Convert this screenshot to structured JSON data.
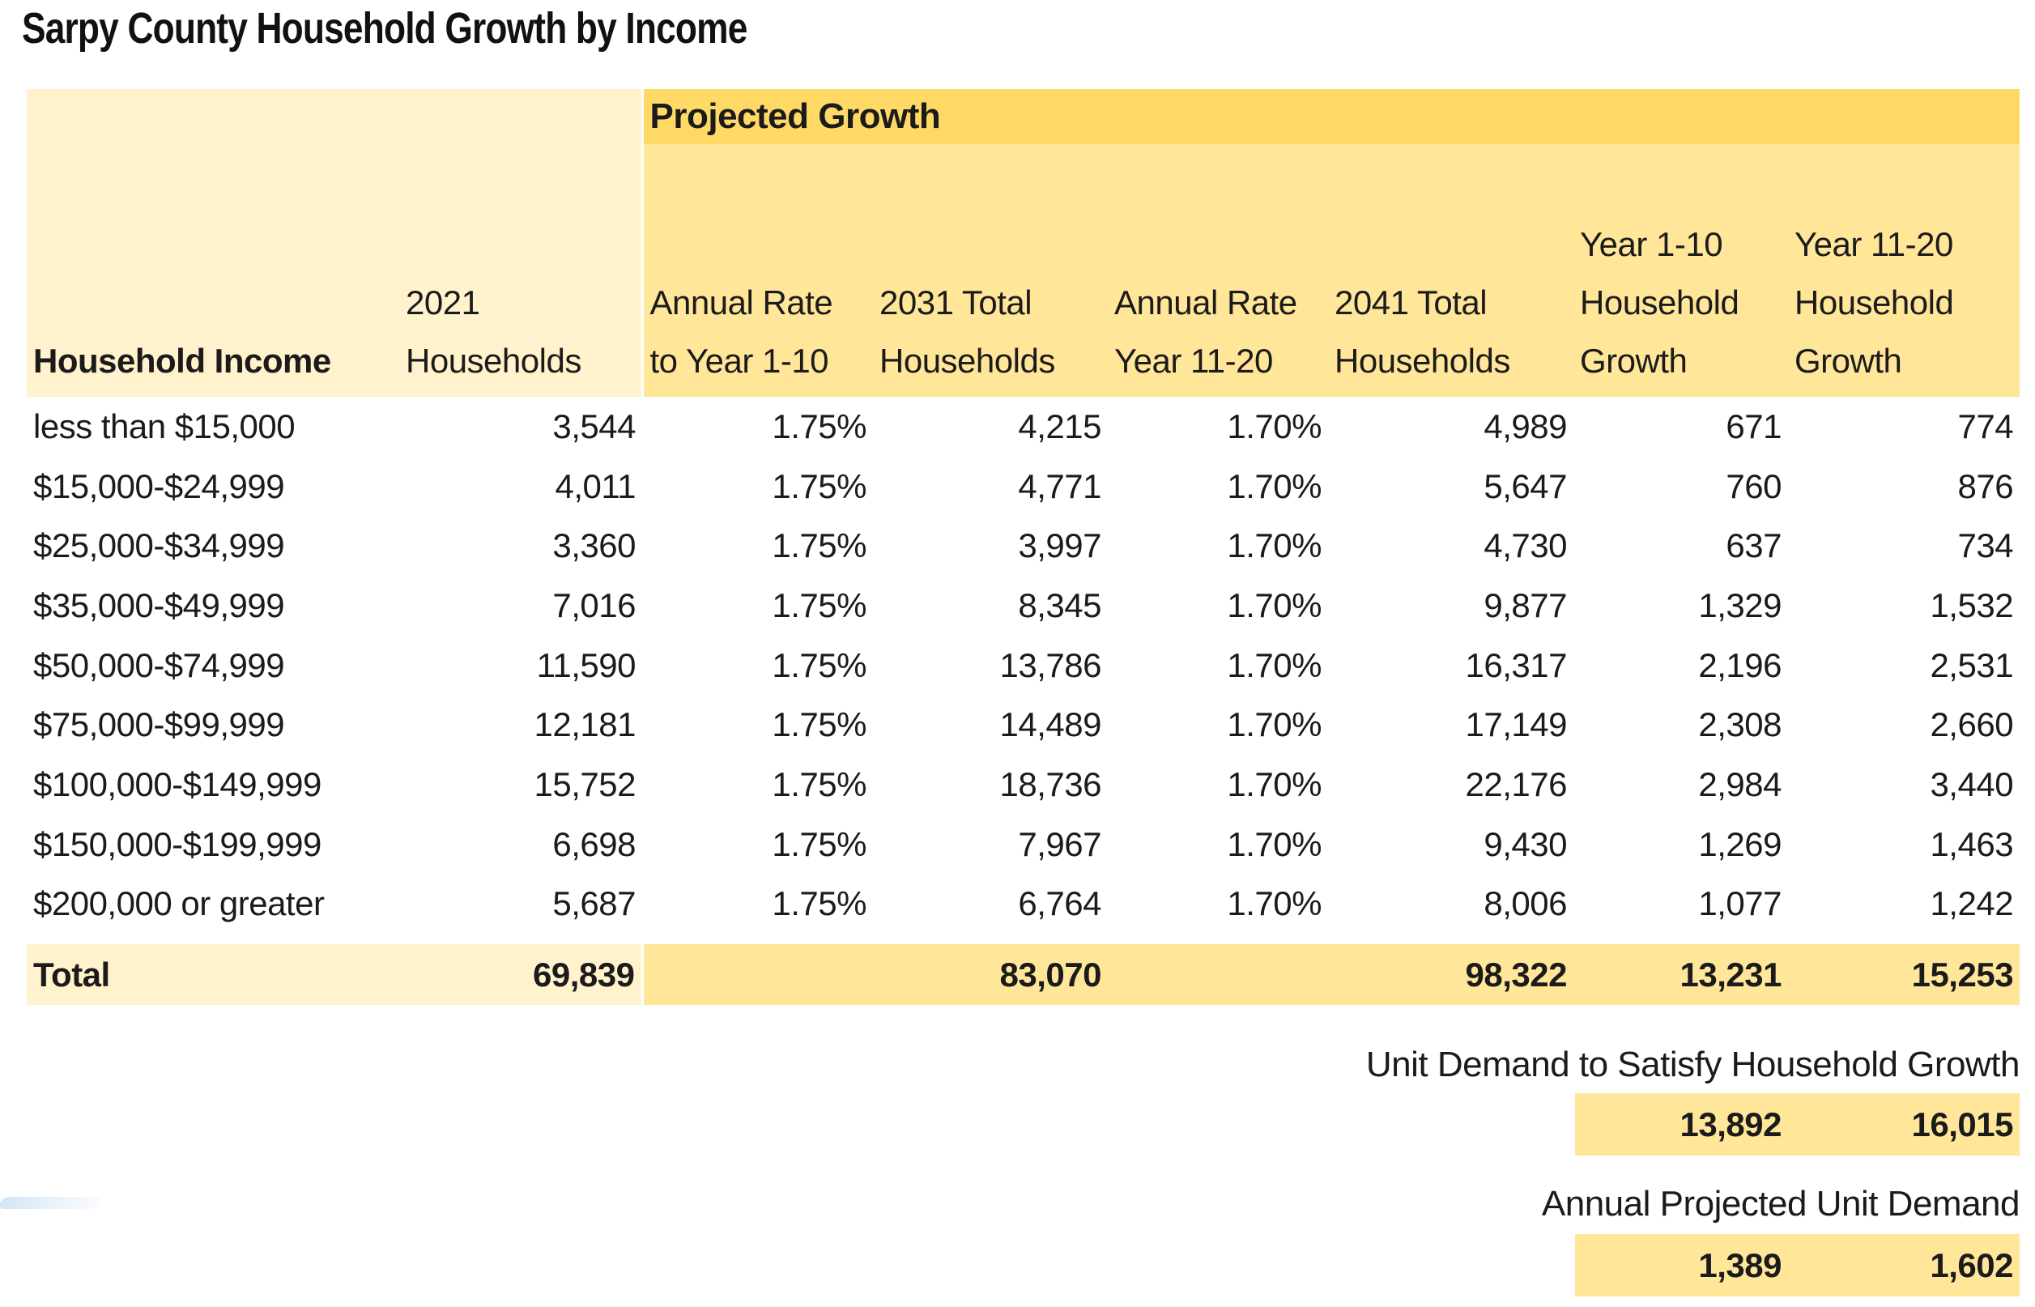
{
  "title": "Sarpy County Household Growth by Income",
  "colors": {
    "light_cream": "#FFF2CC",
    "mid_gold": "#FFE699",
    "band_gold": "#FFD966",
    "text": "#1b1b1b"
  },
  "table": {
    "band_label": "Projected Growth",
    "headers": [
      [
        "Household Income"
      ],
      [
        "2021",
        "Households"
      ],
      [
        "Annual Rate",
        "to Year 1-10"
      ],
      [
        "2031 Total",
        "Households"
      ],
      [
        "Annual Rate",
        "Year 11-20"
      ],
      [
        "2041 Total",
        "Households"
      ],
      [
        "Year 1-10",
        "Household",
        "Growth"
      ],
      [
        "Year 11-20",
        "Household",
        "Growth"
      ]
    ],
    "rows": [
      [
        "less than $15,000",
        "3,544",
        "1.75%",
        "4,215",
        "1.70%",
        "4,989",
        "671",
        "774"
      ],
      [
        "$15,000-$24,999",
        "4,011",
        "1.75%",
        "4,771",
        "1.70%",
        "5,647",
        "760",
        "876"
      ],
      [
        "$25,000-$34,999",
        "3,360",
        "1.75%",
        "3,997",
        "1.70%",
        "4,730",
        "637",
        "734"
      ],
      [
        "$35,000-$49,999",
        "7,016",
        "1.75%",
        "8,345",
        "1.70%",
        "9,877",
        "1,329",
        "1,532"
      ],
      [
        "$50,000-$74,999",
        "11,590",
        "1.75%",
        "13,786",
        "1.70%",
        "16,317",
        "2,196",
        "2,531"
      ],
      [
        "$75,000-$99,999",
        "12,181",
        "1.75%",
        "14,489",
        "1.70%",
        "17,149",
        "2,308",
        "2,660"
      ],
      [
        "$100,000-$149,999",
        "15,752",
        "1.75%",
        "18,736",
        "1.70%",
        "22,176",
        "2,984",
        "3,440"
      ],
      [
        "$150,000-$199,999",
        "6,698",
        "1.75%",
        "7,967",
        "1.70%",
        "9,430",
        "1,269",
        "1,463"
      ],
      [
        "$200,000 or greater",
        "5,687",
        "1.75%",
        "6,764",
        "1.70%",
        "8,006",
        "1,077",
        "1,242"
      ]
    ],
    "total": [
      "Total",
      "69,839",
      "",
      "83,070",
      "",
      "98,322",
      "13,231",
      "15,253"
    ]
  },
  "footer": {
    "unit_demand_label": "Unit Demand to Satisfy Household Growth",
    "unit_demand_values": [
      "13,892",
      "16,015"
    ],
    "annual_demand_label": "Annual Projected Unit Demand",
    "annual_demand_values": [
      "1,389",
      "1,602"
    ]
  }
}
